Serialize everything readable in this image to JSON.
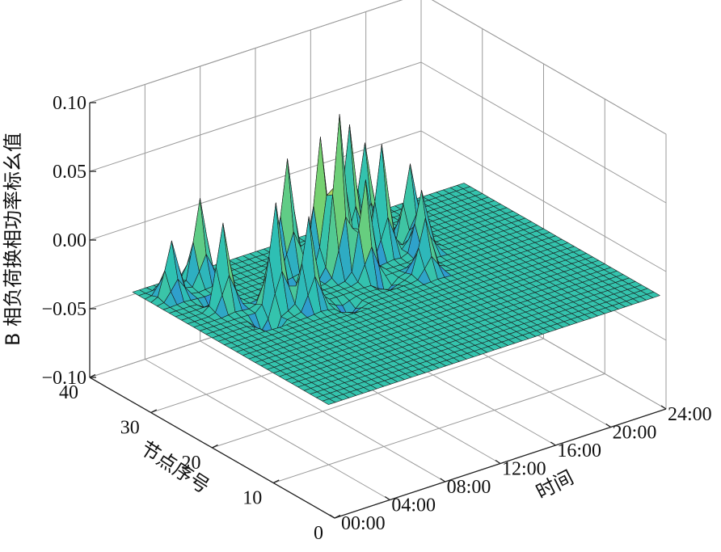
{
  "chart_data": {
    "type": "surface3d",
    "zlabel": "B 相负荷换相功率标幺值",
    "ylabel": "节点序号",
    "xlabel": "时间",
    "zlim": [
      -0.1,
      0.1
    ],
    "ylim": [
      0,
      40
    ],
    "xlim": [
      0,
      24
    ],
    "z_ticks": [
      {
        "value": -0.1,
        "label": "−0.10"
      },
      {
        "value": -0.05,
        "label": "−0.05"
      },
      {
        "value": 0.0,
        "label": "0.00"
      },
      {
        "value": 0.05,
        "label": "0.05"
      },
      {
        "value": 0.1,
        "label": "0.10"
      }
    ],
    "y_ticks": [
      {
        "value": 0,
        "label": "0"
      },
      {
        "value": 10,
        "label": "10"
      },
      {
        "value": 20,
        "label": "20"
      },
      {
        "value": 30,
        "label": "30"
      },
      {
        "value": 40,
        "label": "40"
      }
    ],
    "x_ticks": [
      {
        "value": 0,
        "label": "00:00"
      },
      {
        "value": 4,
        "label": "04:00"
      },
      {
        "value": 8,
        "label": "08:00"
      },
      {
        "value": 12,
        "label": "12:00"
      },
      {
        "value": 16,
        "label": "16:00"
      },
      {
        "value": 20,
        "label": "20:00"
      },
      {
        "value": 24,
        "label": "24:00"
      }
    ],
    "surface": {
      "node_range": [
        1,
        33
      ],
      "time_range": [
        0,
        24
      ],
      "baseline": -0.02,
      "flat_nodes_below": 15,
      "peaks": [
        {
          "node": 30,
          "time": 1.5,
          "z": 0.02
        },
        {
          "node": 25,
          "time": 3.0,
          "z": 0.05
        },
        {
          "node": 22,
          "time": 5.5,
          "z": 0.055
        },
        {
          "node": 31,
          "time": 4.0,
          "z": 0.04
        },
        {
          "node": 20,
          "time": 7.0,
          "z": 0.045
        },
        {
          "node": 28,
          "time": 9.0,
          "z": 0.06
        },
        {
          "node": 26,
          "time": 10.5,
          "z": 0.075
        },
        {
          "node": 24,
          "time": 11.0,
          "z": 0.095
        },
        {
          "node": 22,
          "time": 12.0,
          "z": 0.05
        },
        {
          "node": 28,
          "time": 13.5,
          "z": 0.07
        },
        {
          "node": 25,
          "time": 14.5,
          "z": 0.06
        },
        {
          "node": 30,
          "time": 15.5,
          "z": 0.045
        },
        {
          "node": 26,
          "time": 17.0,
          "z": 0.035
        },
        {
          "node": 19,
          "time": 15.0,
          "z": 0.02
        },
        {
          "node": 23,
          "time": 16.5,
          "z": 0.025
        }
      ],
      "troughs": [
        {
          "node": 26,
          "time": 3.0,
          "z": -0.045
        },
        {
          "node": 20,
          "time": 4.0,
          "z": -0.05
        },
        {
          "node": 18,
          "time": 9.0,
          "z": -0.03
        },
        {
          "node": 24,
          "time": 8.0,
          "z": -0.04
        },
        {
          "node": 20,
          "time": 12.5,
          "z": -0.03
        }
      ]
    },
    "colormap": [
      "#3b48c0",
      "#2f8fd8",
      "#2ec1b3",
      "#7ed36a",
      "#e3d94e"
    ]
  }
}
